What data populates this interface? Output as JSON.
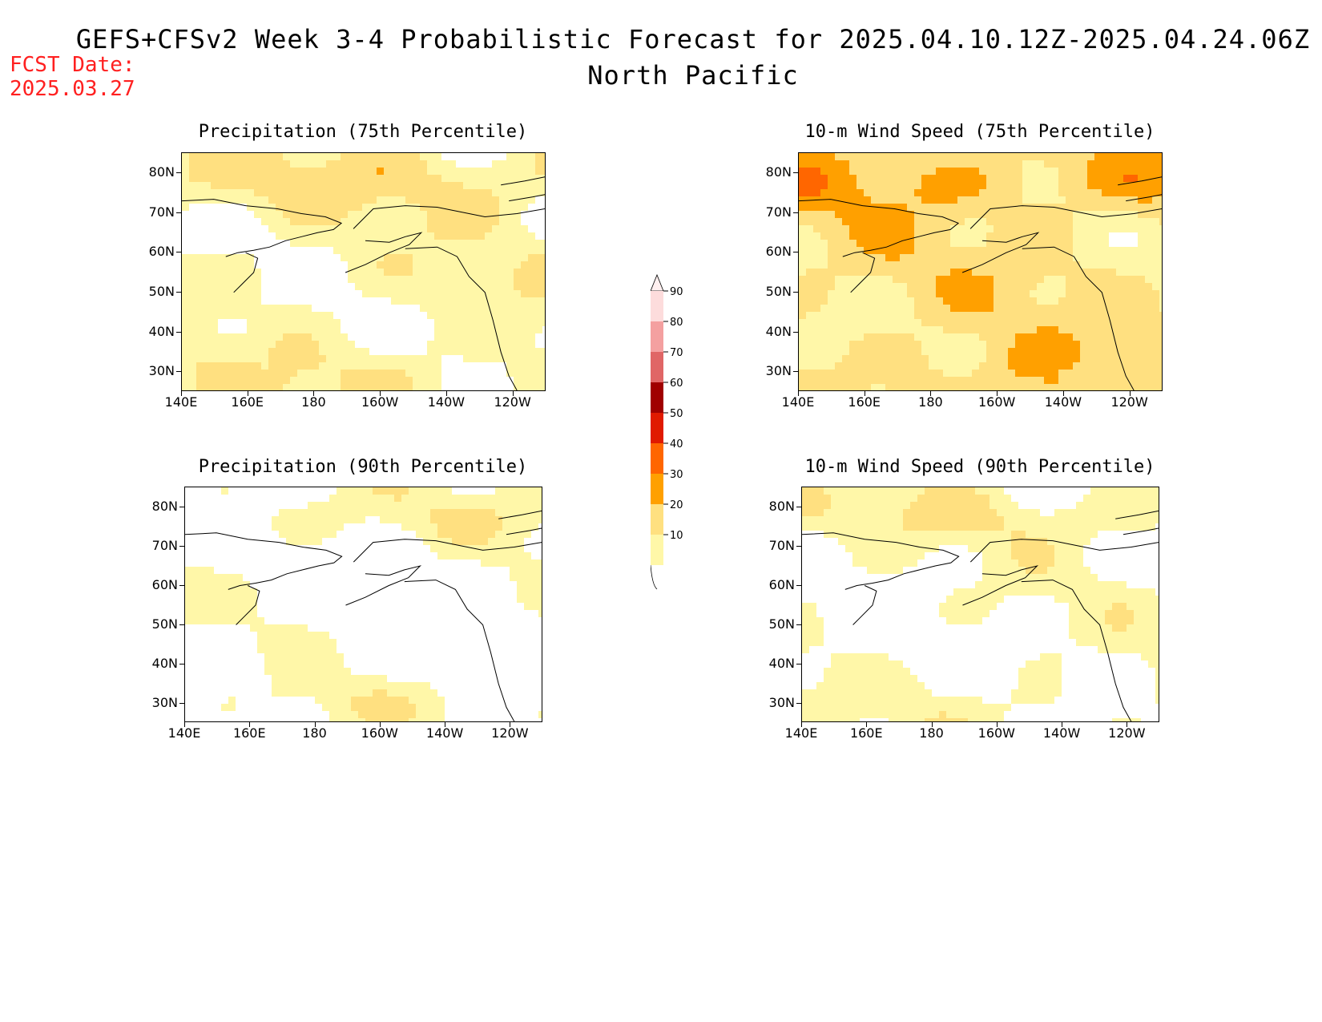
{
  "figure": {
    "title_line1": "GEFS+CFSv2 Week 3-4 Probabilistic Forecast for 2025.04.10.12Z-2025.04.24.06Z",
    "title_line2": "North Pacific",
    "fcst_label": "FCST Date:",
    "fcst_date": "2025.03.27"
  },
  "axes": {
    "lat_labels": [
      "80N",
      "70N",
      "60N",
      "50N",
      "40N",
      "30N"
    ],
    "lon_labels": [
      "140E",
      "160E",
      "180",
      "160W",
      "140W",
      "120W"
    ]
  },
  "panels": [
    {
      "id": "precip75",
      "title": "Precipitation (75th Percentile)",
      "intensity": 1.3
    },
    {
      "id": "wind75",
      "title": "10-m Wind Speed (75th Percentile)",
      "intensity": 2.2
    },
    {
      "id": "precip90",
      "title": "Precipitation (90th Percentile)",
      "intensity": 0.5
    },
    {
      "id": "wind90",
      "title": "10-m Wind Speed (90th Percentile)",
      "intensity": 0.8
    }
  ],
  "colorbar": {
    "levels": [
      "90",
      "80",
      "70",
      "60",
      "50",
      "40",
      "30",
      "20",
      "10"
    ],
    "colors": [
      "#fddcdc",
      "#f4a0a0",
      "#e06666",
      "#a00000",
      "#e01a00",
      "#ff6600",
      "#ffa000",
      "#ffe080",
      "#fff7a8"
    ]
  }
}
